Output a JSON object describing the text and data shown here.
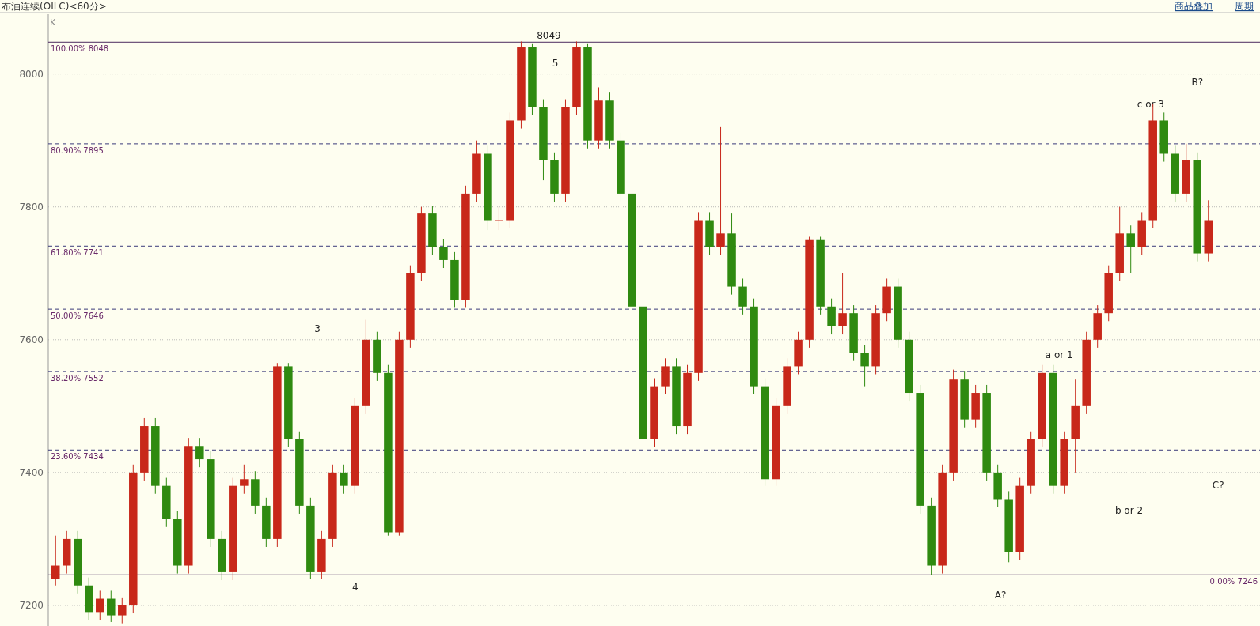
{
  "chart_data": {
    "type": "candlestick",
    "title": "布油连续(OILC)<60分>",
    "ylabel": "K",
    "annotations": [
      "商品叠加",
      "周期",
      {
        "text": "8049",
        "y": 8049
      },
      "5",
      "3",
      "4",
      "A?",
      "a or 1",
      "b or 2",
      "c or 3",
      "B?",
      "C?"
    ],
    "categories": [
      null,
      null,
      null,
      null,
      null,
      null,
      null,
      null,
      null,
      null,
      null,
      null,
      null,
      null,
      null,
      null,
      null,
      null,
      null,
      null,
      null,
      null,
      null,
      null,
      null,
      null,
      null,
      null,
      null,
      null,
      null,
      null,
      null,
      null,
      null,
      null,
      null,
      null,
      null,
      null,
      null,
      null,
      null,
      null,
      null,
      null,
      null,
      null,
      null,
      null,
      null,
      null,
      null,
      null,
      null,
      null,
      null,
      null,
      null,
      null,
      null,
      null,
      null,
      null,
      null,
      null,
      null,
      null,
      null,
      null,
      null,
      null,
      null,
      null,
      null,
      null,
      null,
      null,
      null,
      null,
      null,
      null,
      null,
      null,
      null,
      null,
      null,
      null,
      null,
      null,
      null,
      null,
      null,
      null,
      null,
      null,
      null,
      null,
      null,
      null,
      null,
      null,
      null,
      null,
      null
    ],
    "ohlc": [
      [
        7240,
        7305,
        7230,
        7260
      ],
      [
        7260,
        7312,
        7248,
        7300
      ],
      [
        7300,
        7312,
        7218,
        7230
      ],
      [
        7230,
        7242,
        7178,
        7190
      ],
      [
        7190,
        7222,
        7178,
        7210
      ],
      [
        7210,
        7222,
        7175,
        7185
      ],
      [
        7185,
        7212,
        7173,
        7200
      ],
      [
        7200,
        7412,
        7188,
        7400
      ],
      [
        7400,
        7482,
        7388,
        7470
      ],
      [
        7470,
        7482,
        7368,
        7380
      ],
      [
        7380,
        7392,
        7318,
        7330
      ],
      [
        7330,
        7342,
        7248,
        7260
      ],
      [
        7260,
        7452,
        7248,
        7440
      ],
      [
        7440,
        7452,
        7408,
        7420
      ],
      [
        7420,
        7432,
        7288,
        7300
      ],
      [
        7300,
        7312,
        7238,
        7250
      ],
      [
        7250,
        7392,
        7238,
        7380
      ],
      [
        7380,
        7412,
        7368,
        7390
      ],
      [
        7390,
        7402,
        7338,
        7350
      ],
      [
        7350,
        7362,
        7288,
        7300
      ],
      [
        7300,
        7565,
        7288,
        7560
      ],
      [
        7560,
        7565,
        7438,
        7450
      ],
      [
        7450,
        7462,
        7338,
        7350
      ],
      [
        7350,
        7362,
        7240,
        7250
      ],
      [
        7250,
        7312,
        7240,
        7300
      ],
      [
        7300,
        7412,
        7288,
        7400
      ],
      [
        7400,
        7412,
        7368,
        7380
      ],
      [
        7380,
        7512,
        7368,
        7500
      ],
      [
        7500,
        7630,
        7488,
        7600
      ],
      [
        7600,
        7612,
        7538,
        7550
      ],
      [
        7550,
        7562,
        7305,
        7310
      ],
      [
        7310,
        7612,
        7305,
        7600
      ],
      [
        7600,
        7712,
        7588,
        7700
      ],
      [
        7700,
        7800,
        7688,
        7790
      ],
      [
        7790,
        7802,
        7728,
        7740
      ],
      [
        7740,
        7752,
        7708,
        7720
      ],
      [
        7720,
        7732,
        7648,
        7660
      ],
      [
        7660,
        7832,
        7648,
        7820
      ],
      [
        7820,
        7900,
        7808,
        7880
      ],
      [
        7880,
        7892,
        7765,
        7780
      ],
      [
        7780,
        7800,
        7765,
        7780
      ],
      [
        7780,
        7942,
        7768,
        7930
      ],
      [
        7930,
        8049,
        7918,
        8040
      ],
      [
        8040,
        8045,
        7938,
        7950
      ],
      [
        7950,
        7962,
        7840,
        7870
      ],
      [
        7870,
        7882,
        7808,
        7820
      ],
      [
        7820,
        7962,
        7808,
        7950
      ],
      [
        7950,
        8049,
        7938,
        8040
      ],
      [
        8040,
        8045,
        7888,
        7900
      ],
      [
        7900,
        7980,
        7888,
        7960
      ],
      [
        7960,
        7972,
        7888,
        7900
      ],
      [
        7900,
        7912,
        7808,
        7820
      ],
      [
        7820,
        7832,
        7638,
        7650
      ],
      [
        7650,
        7662,
        7440,
        7450
      ],
      [
        7450,
        7542,
        7438,
        7530
      ],
      [
        7530,
        7572,
        7518,
        7560
      ],
      [
        7560,
        7572,
        7458,
        7470
      ],
      [
        7470,
        7562,
        7458,
        7550
      ],
      [
        7550,
        7792,
        7538,
        7780
      ],
      [
        7780,
        7792,
        7728,
        7740
      ],
      [
        7740,
        7920,
        7728,
        7760
      ],
      [
        7760,
        7790,
        7668,
        7680
      ],
      [
        7680,
        7692,
        7638,
        7650
      ],
      [
        7650,
        7662,
        7518,
        7530
      ],
      [
        7530,
        7542,
        7380,
        7390
      ],
      [
        7390,
        7512,
        7380,
        7500
      ],
      [
        7500,
        7572,
        7488,
        7560
      ],
      [
        7560,
        7612,
        7548,
        7600
      ],
      [
        7600,
        7755,
        7588,
        7750
      ],
      [
        7750,
        7755,
        7638,
        7650
      ],
      [
        7650,
        7662,
        7608,
        7620
      ],
      [
        7620,
        7700,
        7608,
        7640
      ],
      [
        7640,
        7652,
        7568,
        7580
      ],
      [
        7580,
        7592,
        7530,
        7560
      ],
      [
        7560,
        7652,
        7548,
        7640
      ],
      [
        7640,
        7692,
        7628,
        7680
      ],
      [
        7680,
        7692,
        7588,
        7600
      ],
      [
        7600,
        7612,
        7508,
        7520
      ],
      [
        7520,
        7532,
        7338,
        7350
      ],
      [
        7350,
        7362,
        7246,
        7260
      ],
      [
        7260,
        7412,
        7248,
        7400
      ],
      [
        7400,
        7555,
        7388,
        7540
      ],
      [
        7540,
        7552,
        7468,
        7480
      ],
      [
        7480,
        7532,
        7468,
        7520
      ],
      [
        7520,
        7532,
        7388,
        7400
      ],
      [
        7400,
        7412,
        7348,
        7360
      ],
      [
        7360,
        7372,
        7265,
        7280
      ],
      [
        7280,
        7392,
        7268,
        7380
      ],
      [
        7380,
        7462,
        7368,
        7450
      ],
      [
        7450,
        7562,
        7438,
        7550
      ],
      [
        7550,
        7562,
        7368,
        7380
      ],
      [
        7380,
        7462,
        7368,
        7450
      ],
      [
        7450,
        7540,
        7400,
        7500
      ],
      [
        7500,
        7612,
        7488,
        7600
      ],
      [
        7600,
        7652,
        7588,
        7640
      ],
      [
        7640,
        7712,
        7628,
        7700
      ],
      [
        7700,
        7800,
        7688,
        7760
      ],
      [
        7760,
        7772,
        7700,
        7740
      ],
      [
        7740,
        7792,
        7728,
        7780
      ],
      [
        7780,
        7955,
        7768,
        7930
      ],
      [
        7930,
        7942,
        7868,
        7880
      ],
      [
        7880,
        7892,
        7808,
        7820
      ],
      [
        7820,
        7895,
        7808,
        7870
      ],
      [
        7870,
        7882,
        7718,
        7730
      ],
      [
        7730,
        7810,
        7718,
        7780
      ]
    ],
    "ylim": [
      7169,
      8090
    ],
    "yticks": [
      7200,
      7400,
      7600,
      7800,
      8000
    ],
    "grid": "y",
    "ref_lines": [
      {
        "axis": "y",
        "value": 8048,
        "label": "100.00% 8048",
        "line_style": "solid",
        "color": "#4b2a5e"
      },
      {
        "axis": "y",
        "value": 7895,
        "label": "80.90% 7895",
        "line_style": "dashed",
        "color": "#3a3a7a"
      },
      {
        "axis": "y",
        "value": 7741,
        "label": "61.80% 7741",
        "line_style": "dashed",
        "color": "#3a3a7a"
      },
      {
        "axis": "y",
        "value": 7646,
        "label": "50.00% 7646",
        "line_style": "dashed",
        "color": "#3a3a7a"
      },
      {
        "axis": "y",
        "value": 7552,
        "label": "38.20% 7552",
        "line_style": "dashed",
        "color": "#3a3a7a"
      },
      {
        "axis": "y",
        "value": 7434,
        "label": "23.60% 7434",
        "line_style": "dashed",
        "color": "#3a3a7a"
      },
      {
        "axis": "y",
        "value": 7246,
        "label": "0.00% 7246",
        "line_style": "solid",
        "color": "#4b2a5e"
      }
    ]
  }
}
